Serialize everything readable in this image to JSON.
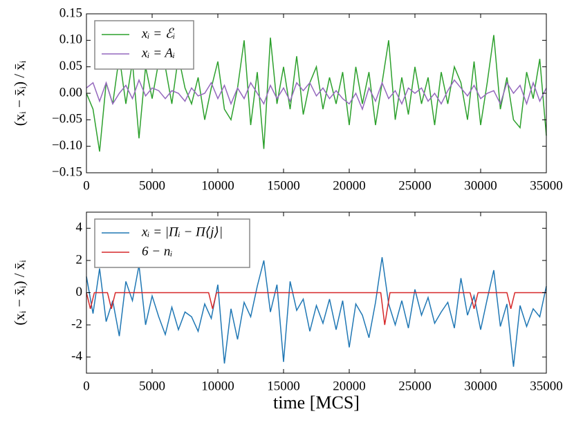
{
  "chart_data": [
    {
      "type": "line",
      "ylabel": "(xᵢ − x̄ᵢ) / x̄ᵢ",
      "xlim": [
        0,
        35000
      ],
      "xticks": [
        0,
        5000,
        10000,
        15000,
        20000,
        25000,
        30000,
        35000
      ],
      "ylim": [
        -0.15,
        0.15
      ],
      "yticks": [
        {
          "value": -0.15,
          "label": "−0.15"
        },
        {
          "value": -0.1,
          "label": "−0.10"
        },
        {
          "value": -0.05,
          "label": "−0.05"
        },
        {
          "value": 0,
          "label": "0.00"
        },
        {
          "value": 0.05,
          "label": "0.05"
        },
        {
          "value": 0.1,
          "label": "0.10"
        },
        0.15
      ],
      "legend": "upper left",
      "series": [
        {
          "name": "xᵢ = ℰᵢ",
          "color": "#2ca02c",
          "x": [
            0,
            500,
            1000,
            1500,
            2000,
            2500,
            3000,
            3500,
            4000,
            4500,
            5000,
            5500,
            6000,
            6500,
            7000,
            7500,
            8000,
            8500,
            9000,
            9500,
            10000,
            10500,
            11000,
            11500,
            12000,
            12500,
            13000,
            13500,
            14000,
            14500,
            15000,
            15500,
            16000,
            16500,
            17000,
            17500,
            18000,
            18500,
            19000,
            19500,
            20000,
            20500,
            21000,
            21500,
            22000,
            22500,
            23000,
            23500,
            24000,
            24500,
            25000,
            25500,
            26000,
            26500,
            27000,
            27500,
            28000,
            28500,
            29000,
            29500,
            30000,
            30500,
            31000,
            31500,
            32000,
            32500,
            33000,
            33500,
            34000,
            34500,
            35000
          ],
          "values": [
            0.0,
            -0.03,
            -0.11,
            0.02,
            -0.02,
            0.07,
            -0.02,
            0.06,
            -0.085,
            0.05,
            -0.01,
            0.06,
            0.05,
            -0.02,
            0.07,
            0.01,
            -0.02,
            0.03,
            -0.05,
            0.01,
            0.06,
            -0.03,
            -0.05,
            0.01,
            0.1,
            -0.06,
            0.04,
            -0.105,
            0.105,
            -0.02,
            0.05,
            -0.03,
            0.07,
            -0.04,
            0.02,
            0.05,
            -0.03,
            0.03,
            -0.02,
            0.04,
            -0.06,
            0.05,
            -0.02,
            0.04,
            -0.06,
            0.02,
            0.1,
            -0.05,
            0.03,
            -0.04,
            0.05,
            -0.02,
            0.03,
            -0.06,
            0.04,
            -0.02,
            0.05,
            0.02,
            -0.05,
            0.06,
            -0.06,
            0.02,
            0.11,
            -0.03,
            0.03,
            -0.05,
            -0.065,
            0.04,
            -0.01,
            0.065,
            -0.08
          ]
        },
        {
          "name": "xᵢ = Aᵢ",
          "color": "#9467bd",
          "x": [
            0,
            500,
            1000,
            1500,
            2000,
            2500,
            3000,
            3500,
            4000,
            4500,
            5000,
            5500,
            6000,
            6500,
            7000,
            7500,
            8000,
            8500,
            9000,
            9500,
            10000,
            10500,
            11000,
            11500,
            12000,
            12500,
            13000,
            13500,
            14000,
            14500,
            15000,
            15500,
            16000,
            16500,
            17000,
            17500,
            18000,
            18500,
            19000,
            19500,
            20000,
            20500,
            21000,
            21500,
            22000,
            22500,
            23000,
            23500,
            24000,
            24500,
            25000,
            25500,
            26000,
            26500,
            27000,
            27500,
            28000,
            28500,
            29000,
            29500,
            30000,
            30500,
            31000,
            31500,
            32000,
            32500,
            33000,
            33500,
            34000,
            34500,
            35000
          ],
          "values": [
            0.01,
            0.02,
            -0.015,
            0.02,
            -0.02,
            0.0,
            0.015,
            -0.01,
            0.025,
            -0.005,
            0.01,
            0.005,
            -0.01,
            0.005,
            0.0,
            -0.015,
            0.01,
            -0.005,
            0.0,
            0.02,
            -0.01,
            0.015,
            -0.02,
            0.01,
            -0.01,
            0.02,
            0.0,
            -0.02,
            0.015,
            -0.01,
            0.01,
            -0.015,
            0.02,
            0.005,
            0.02,
            -0.005,
            0.01,
            -0.01,
            0.005,
            -0.01,
            -0.02,
            0.0,
            -0.03,
            0.01,
            -0.015,
            0.02,
            -0.01,
            0.005,
            -0.02,
            0.01,
            0.0,
            0.01,
            -0.015,
            0.0,
            -0.02,
            0.005,
            0.025,
            0.01,
            -0.005,
            0.015,
            -0.01,
            0.0,
            0.005,
            -0.02,
            0.02,
            0.0,
            0.015,
            -0.02,
            0.02,
            -0.015,
            0.01
          ]
        }
      ]
    },
    {
      "type": "line",
      "ylabel": "(xᵢ − x̄ᵢ) / x̄ᵢ",
      "xlabel": "time [MCS]",
      "xlim": [
        0,
        35000
      ],
      "xticks": [
        0,
        5000,
        10000,
        15000,
        20000,
        25000,
        30000,
        35000
      ],
      "ylim": [
        -5,
        5
      ],
      "yticks": [
        -4,
        -2,
        0,
        2,
        4
      ],
      "legend": "upper left",
      "series": [
        {
          "name": "xᵢ = |Πᵢ − Π⟨j⟩|",
          "color": "#1f77b4",
          "x": [
            0,
            500,
            1000,
            1500,
            2000,
            2500,
            3000,
            3500,
            4000,
            4500,
            5000,
            5500,
            6000,
            6500,
            7000,
            7500,
            8000,
            8500,
            9000,
            9500,
            10000,
            10500,
            11000,
            11500,
            12000,
            12500,
            13000,
            13500,
            14000,
            14500,
            15000,
            15500,
            16000,
            16500,
            17000,
            17500,
            18000,
            18500,
            19000,
            19500,
            20000,
            20500,
            21000,
            21500,
            22000,
            22500,
            23000,
            23500,
            24000,
            24500,
            25000,
            25500,
            26000,
            26500,
            27000,
            27500,
            28000,
            28500,
            29000,
            29500,
            30000,
            30500,
            31000,
            31500,
            32000,
            32500,
            33000,
            33500,
            34000,
            34500,
            35000
          ],
          "values": [
            1.0,
            -1.3,
            1.5,
            -1.8,
            -0.5,
            -2.7,
            0.7,
            -0.5,
            1.7,
            -2.0,
            -0.2,
            -1.5,
            -2.6,
            -0.9,
            -2.3,
            -1.2,
            -1.5,
            -2.4,
            -0.7,
            -1.6,
            0.5,
            -4.4,
            -1.0,
            -2.9,
            -0.6,
            -1.5,
            0.4,
            2.0,
            -1.2,
            0.5,
            -4.3,
            0.7,
            -1.1,
            -0.4,
            -2.4,
            -0.8,
            -1.9,
            -0.4,
            -2.3,
            -0.5,
            -3.4,
            -0.7,
            -1.4,
            -2.8,
            -0.6,
            2.2,
            -0.7,
            -2.0,
            -0.5,
            -2.2,
            0.2,
            -1.4,
            -0.3,
            -1.9,
            -1.2,
            -0.6,
            -2.2,
            0.9,
            -1.4,
            -0.2,
            -2.3,
            -0.4,
            1.4,
            -2.1,
            -0.7,
            -4.6,
            -0.8,
            -2.1,
            -1.0,
            -1.5,
            0.4
          ]
        },
        {
          "name": "6 − nᵢ",
          "color": "#d62728",
          "x": [
            0,
            300,
            600,
            1600,
            1900,
            2200,
            9300,
            9600,
            9900,
            22400,
            22700,
            23100,
            29200,
            29500,
            29800,
            32000,
            32300,
            32600,
            35000
          ],
          "values": [
            0,
            -1,
            0,
            0,
            -1,
            0,
            0,
            -1,
            0,
            0,
            -2,
            0,
            0,
            -1,
            0,
            0,
            -1,
            0,
            0
          ]
        }
      ]
    }
  ]
}
